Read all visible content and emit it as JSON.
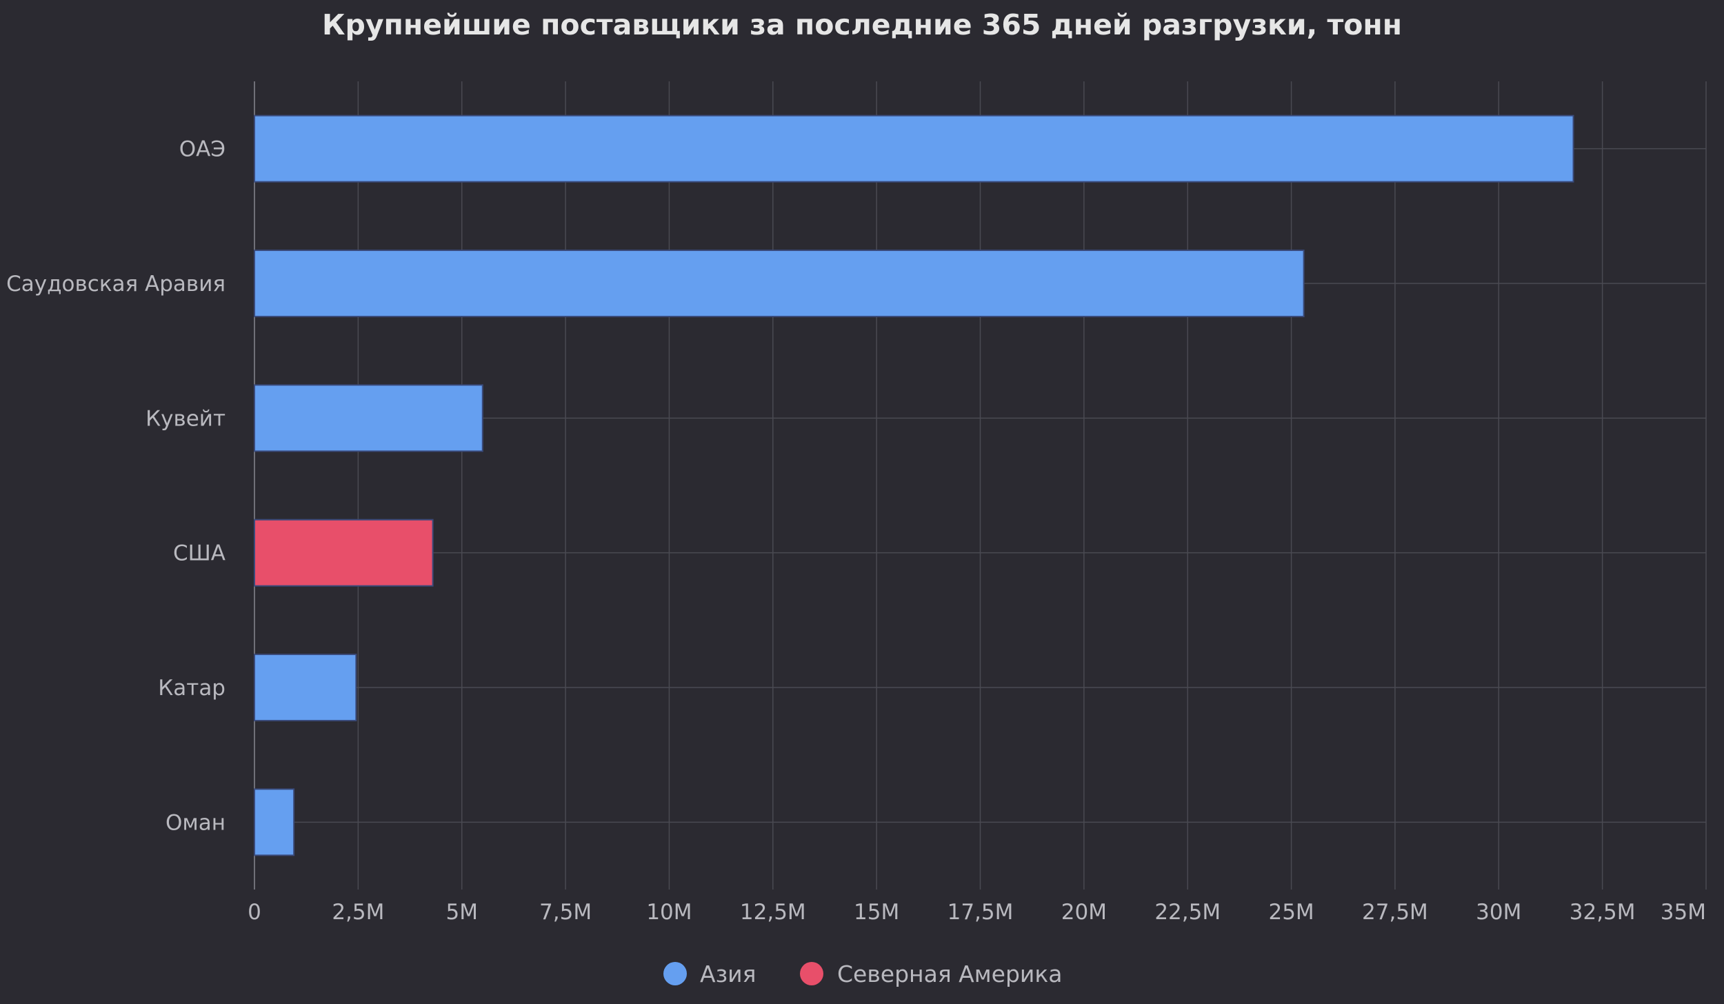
{
  "chart_data": {
    "type": "bar",
    "orientation": "horizontal",
    "title": "Крупнейшие поставщики за последние 365 дней разгрузки, тонн",
    "categories": [
      "ОАЭ",
      "Саудовская Аравия",
      "Кувейт",
      "США",
      "Катар",
      "Оман"
    ],
    "values": [
      31800000,
      25300000,
      5500000,
      4300000,
      2450000,
      950000
    ],
    "groups": [
      "Азия",
      "Азия",
      "Азия",
      "Северная Америка",
      "Азия",
      "Азия"
    ],
    "xlim": [
      0,
      35000000
    ],
    "x_ticks": [
      0,
      2500000,
      5000000,
      7500000,
      10000000,
      12500000,
      15000000,
      17500000,
      20000000,
      22500000,
      25000000,
      27500000,
      30000000,
      32500000,
      35000000
    ],
    "x_tick_labels": [
      "0",
      "2,5M",
      "5M",
      "7,5M",
      "10M",
      "12,5M",
      "15M",
      "17,5M",
      "20M",
      "22,5M",
      "25M",
      "27,5M",
      "30M",
      "32,5M",
      "35M"
    ],
    "grid": true,
    "legend_position": "bottom",
    "legend": [
      {
        "name": "Азия",
        "color": "#659ff0"
      },
      {
        "name": "Северная Америка",
        "color": "#e84f6a"
      }
    ]
  },
  "colors": {
    "background": "#2b2a31",
    "grid": "#4a4a52",
    "axis": "#707078",
    "bar_border": "#3a4a7a"
  }
}
